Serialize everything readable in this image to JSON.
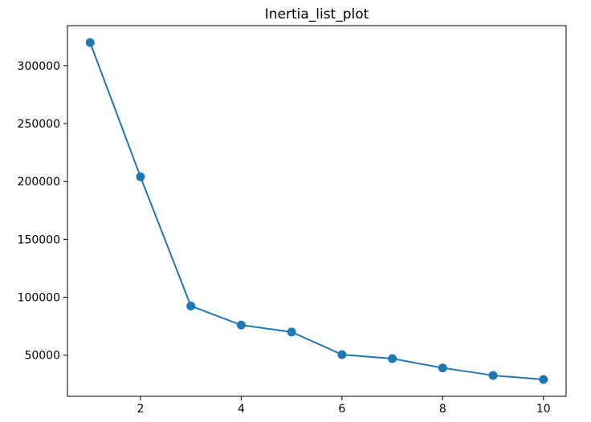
{
  "chart_data": {
    "type": "line",
    "title": "Inertia_list_plot",
    "xlabel": "",
    "ylabel": "",
    "x": [
      1,
      2,
      3,
      4,
      5,
      6,
      7,
      8,
      9,
      10
    ],
    "series": [
      {
        "values": [
          320000,
          204000,
          92500,
          76000,
          70000,
          50500,
          47000,
          39000,
          32500,
          29000
        ],
        "color": "#1f77b4",
        "marker": "circle"
      }
    ],
    "xticks": [
      2,
      4,
      6,
      8,
      10
    ],
    "yticks": [
      50000,
      100000,
      150000,
      200000,
      250000,
      300000
    ],
    "xlim": [
      0.55,
      10.45
    ],
    "ylim": [
      14450,
      334550
    ],
    "grid": false,
    "legend": null
  }
}
